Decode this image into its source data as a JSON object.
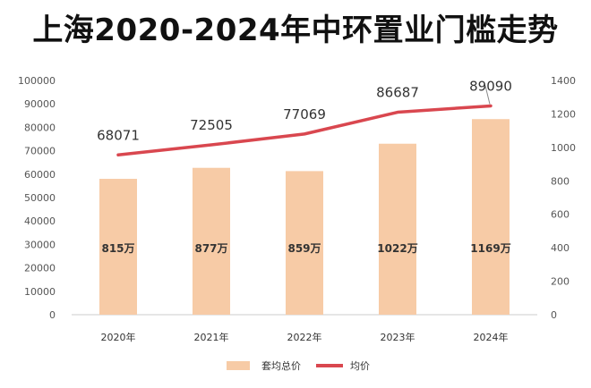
{
  "chart_data": {
    "type": "bar+line",
    "title": "上海2020-2024年中环置业门槛走势",
    "categories": [
      "2020年",
      "2021年",
      "2022年",
      "2023年",
      "2024年"
    ],
    "series": [
      {
        "name": "套均总价",
        "kind": "bar",
        "axis": "left",
        "values": [
          58000,
          62700,
          61300,
          73000,
          83500
        ],
        "labels": [
          "815万",
          "877万",
          "859万",
          "1022万",
          "1169万"
        ],
        "color": "#F7CBA6"
      },
      {
        "name": "均价",
        "kind": "line",
        "axis": "right",
        "values": [
          955,
          1015,
          1080,
          1210,
          1248
        ],
        "labels": [
          "68071",
          "72505",
          "77069",
          "86687",
          "89090"
        ],
        "color": "#D9474F"
      }
    ],
    "left_axis": {
      "min": 0,
      "max": 100000,
      "step": 10000,
      "ticks": [
        "0",
        "10000",
        "20000",
        "30000",
        "40000",
        "50000",
        "60000",
        "70000",
        "80000",
        "90000",
        "100000"
      ]
    },
    "right_axis": {
      "min": 0,
      "max": 1400,
      "step": 200,
      "ticks": [
        "0",
        "200",
        "400",
        "600",
        "800",
        "1000",
        "1200",
        "1400"
      ]
    },
    "legend_position": "bottom",
    "grid": false
  }
}
